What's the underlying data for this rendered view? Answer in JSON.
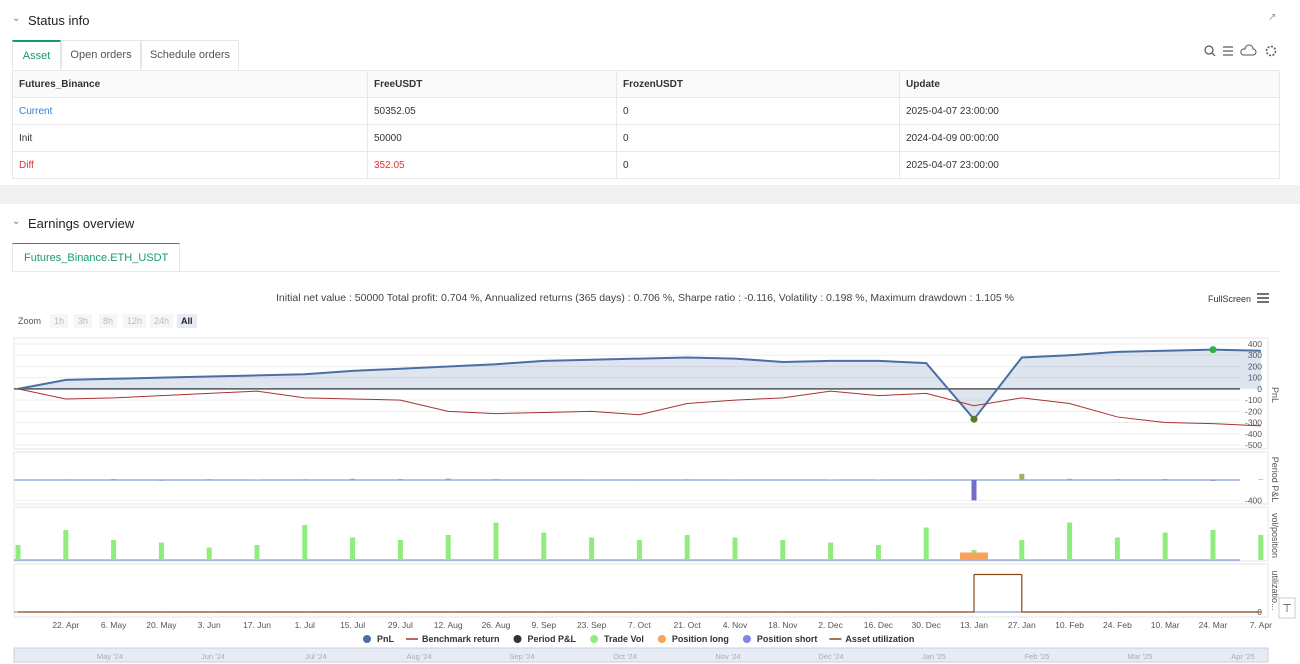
{
  "status_info": {
    "title": "Status info",
    "tabs": [
      "Asset",
      "Open orders",
      "Schedule orders"
    ],
    "table": {
      "headers": [
        "Futures_Binance",
        "FreeUSDT",
        "FrozenUSDT",
        "Update"
      ],
      "rows": [
        [
          "Current",
          "50352.05",
          "0",
          "2025-04-07 23:00:00"
        ],
        [
          "Init",
          "50000",
          "0",
          "2024-04-09 00:00:00"
        ],
        [
          "Diff",
          "352.05",
          "0",
          "2025-04-07 23:00:00"
        ]
      ]
    }
  },
  "earnings_overview": {
    "title": "Earnings overview",
    "tab": "Futures_Binance.ETH_USDT",
    "summary": "Initial net value : 50000 Total profit: 0.704 %, Annualized returns (365 days) : 0.706 %, Sharpe ratio : -0.116, Volatility : 0.198 %, Maximum drawdown : 1.105 %",
    "fullscreen": "FullScreen",
    "zoom_label": "Zoom",
    "zoom_buttons": [
      "1h",
      "3h",
      "8h",
      "12h",
      "24h",
      "All"
    ],
    "navigator_labels": [
      "May '24",
      "Jun '24",
      "Jul '24",
      "Aug '24",
      "Sep '24",
      "Oct '24",
      "Nov '24",
      "Dec '24",
      "Jan '25",
      "Feb '25",
      "Mar '25",
      "Apr '25"
    ]
  },
  "chart_data": {
    "type": "combo",
    "categories": [
      null,
      "22. Apr",
      "6. May",
      "20. May",
      "3. Jun",
      "17. Jun",
      "1. Jul",
      "15. Jul",
      "29. Jul",
      "12. Aug",
      "26. Aug",
      "9. Sep",
      "23. Sep",
      "7. Oct",
      "21. Oct",
      "4. Nov",
      "18. Nov",
      "2. Dec",
      "16. Dec",
      "30. Dec",
      "13. Jan",
      "27. Jan",
      "10. Feb",
      "24. Feb",
      "10. Mar",
      "24. Mar",
      "7. Apr"
    ],
    "panels": [
      {
        "title": "PnL",
        "ylim": [
          -500,
          400
        ],
        "yticks": [
          400,
          300,
          200,
          100,
          0,
          -100,
          -200,
          -300,
          -400,
          -500
        ],
        "series": [
          {
            "name": "PnL",
            "type": "area",
            "color": "#4a6fa5",
            "max_color": "#2bb04a",
            "min_color": "#5b7d1e",
            "values": [
              0,
              80,
              90,
              100,
              110,
              120,
              130,
              160,
              180,
              200,
              220,
              250,
              260,
              270,
              280,
              270,
              240,
              250,
              250,
              230,
              -270,
              280,
              300,
              330,
              340,
              350,
              340
            ]
          },
          {
            "name": "Benchmark return",
            "type": "line",
            "color": "#a83232",
            "values": [
              0,
              -90,
              -80,
              -60,
              -40,
              -20,
              -80,
              -90,
              -100,
              -200,
              -220,
              -210,
              -200,
              -230,
              -130,
              -100,
              -80,
              -20,
              -60,
              -40,
              -150,
              -80,
              -130,
              -250,
              -300,
              -310,
              -330
            ]
          }
        ]
      },
      {
        "title": "Period P&L",
        "ylim": [
          -450,
          450
        ],
        "yticks": [
          -400
        ],
        "series": [
          {
            "name": "Period P&L",
            "type": "column",
            "color": "#333333",
            "positive_color": "#a3b55a",
            "negative_color": "#6f6fc9",
            "values": [
              null,
              15,
              20,
              -12,
              18,
              10,
              16,
              25,
              20,
              28,
              18,
              14,
              12,
              -10,
              16,
              12,
              14,
              10,
              8,
              12,
              -400,
              120,
              24,
              18,
              20,
              -14,
              12
            ]
          }
        ]
      },
      {
        "title": "vol/position",
        "ylim": [
          0,
          100
        ],
        "yticks": [],
        "series": [
          {
            "name": "Trade Vol",
            "type": "column",
            "color": "#90ed7d",
            "values": [
              30,
              60,
              40,
              35,
              25,
              30,
              70,
              45,
              40,
              50,
              75,
              55,
              45,
              40,
              50,
              45,
              40,
              35,
              30,
              65,
              20,
              40,
              75,
              45,
              55,
              60,
              50
            ]
          },
          {
            "name": "Position long",
            "type": "column",
            "color": "#f7a35c",
            "values": [
              null,
              null,
              null,
              null,
              null,
              null,
              null,
              null,
              null,
              null,
              null,
              null,
              null,
              null,
              null,
              null,
              null,
              null,
              null,
              null,
              15,
              null,
              null,
              null,
              null,
              null,
              null
            ]
          },
          {
            "name": "Position short",
            "type": "column",
            "color": "#8085e9",
            "values": [
              null,
              null,
              null,
              null,
              null,
              null,
              null,
              null,
              null,
              null,
              null,
              null,
              null,
              null,
              null,
              null,
              null,
              null,
              null,
              null,
              null,
              null,
              null,
              null,
              null,
              null,
              null
            ]
          }
        ]
      },
      {
        "title": "utilizatio...",
        "ylim": [
          0,
          120
        ],
        "yticks": [
          0
        ],
        "series": [
          {
            "name": "Asset utilization",
            "type": "step",
            "color": "#8b4513",
            "values": [
              0,
              0,
              0,
              0,
              0,
              0,
              0,
              0,
              0,
              0,
              0,
              0,
              0,
              0,
              0,
              0,
              0,
              0,
              0,
              0,
              100,
              0,
              0,
              0,
              0,
              0,
              0
            ]
          }
        ]
      }
    ]
  }
}
